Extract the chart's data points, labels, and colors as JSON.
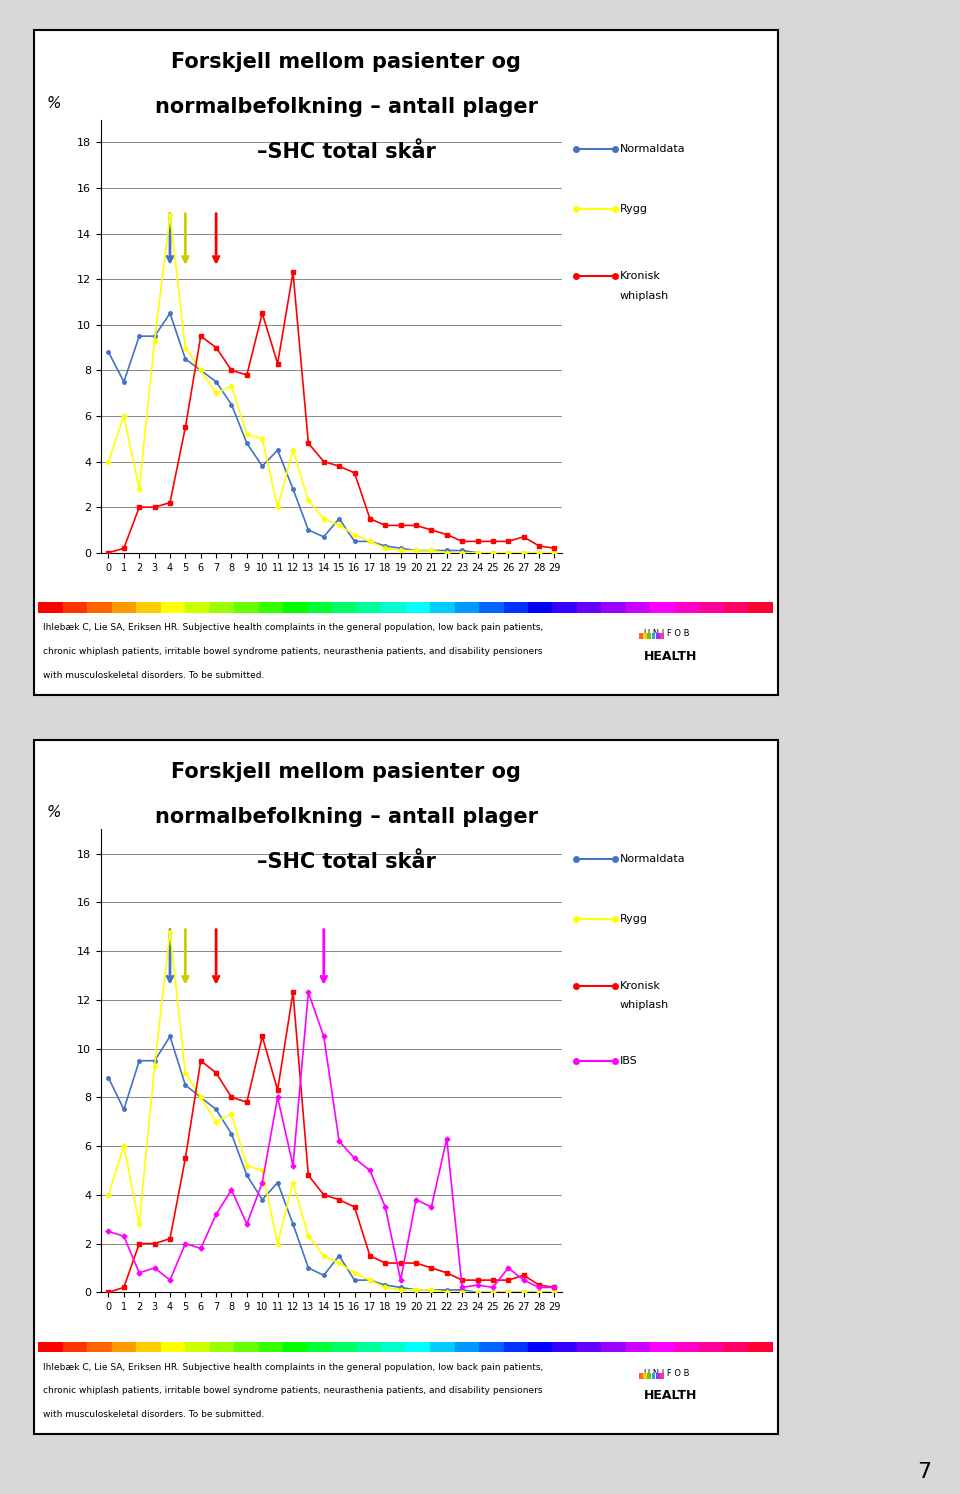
{
  "ylabel_ticks": [
    0,
    2,
    4,
    6,
    8,
    10,
    12,
    14,
    16,
    18
  ],
  "xticks": [
    0,
    1,
    2,
    3,
    4,
    5,
    6,
    7,
    8,
    9,
    10,
    11,
    12,
    13,
    14,
    15,
    16,
    17,
    18,
    19,
    20,
    21,
    22,
    23,
    24,
    25,
    26,
    27,
    28,
    29
  ],
  "normaldata": [
    8.8,
    7.5,
    9.5,
    9.5,
    10.5,
    8.5,
    8.0,
    7.5,
    6.5,
    4.8,
    3.8,
    4.5,
    2.8,
    1.0,
    0.7,
    1.5,
    0.5,
    0.5,
    0.3,
    0.2,
    0.1,
    0.1,
    0.1,
    0.1,
    0.0,
    0.0,
    0.0,
    0.0,
    0.0,
    0.0
  ],
  "rygg": [
    4.0,
    6.0,
    2.8,
    9.3,
    14.8,
    9.0,
    8.0,
    7.0,
    7.3,
    5.2,
    5.0,
    2.0,
    4.5,
    2.3,
    1.5,
    1.2,
    0.8,
    0.5,
    0.2,
    0.1,
    0.1,
    0.1,
    0.0,
    0.0,
    0.0,
    0.0,
    0.0,
    0.0,
    0.0,
    0.0
  ],
  "kronisk_whiplash": [
    0.0,
    0.2,
    2.0,
    2.0,
    2.2,
    5.5,
    9.5,
    9.0,
    8.0,
    7.8,
    10.5,
    8.3,
    12.3,
    4.8,
    4.0,
    3.8,
    3.5,
    1.5,
    1.2,
    1.2,
    1.2,
    1.0,
    0.8,
    0.5,
    0.5,
    0.5,
    0.5,
    0.7,
    0.3,
    0.2
  ],
  "ibs": [
    2.5,
    2.3,
    0.8,
    1.0,
    0.5,
    2.0,
    1.8,
    3.2,
    4.2,
    2.8,
    4.5,
    8.0,
    5.2,
    12.3,
    10.5,
    6.2,
    5.5,
    5.0,
    3.5,
    0.5,
    3.8,
    3.5,
    6.3,
    0.2,
    0.3,
    0.2,
    1.0,
    0.5,
    0.2,
    0.2
  ],
  "normaldata_color": "#4472C4",
  "rygg_color": "#FFFF00",
  "kronisk_color": "#FF0000",
  "ibs_color": "#FF00FF",
  "panel_bg": "#FFFFFF",
  "fig_bg": "#D8D8D8",
  "grid_color": "#888888",
  "footnote1": "Ihlebæk C, Lie SA, Eriksen HR. Subjective health complaints in the general population, low back pain patients,",
  "footnote2": "chronic whiplash patients, irritable bowel syndrome patients, neurasthenia patients, and disability pensioners",
  "footnote3": "with musculoskeletal disorders. To be submitted.",
  "stripe_colors": [
    "#FF0000",
    "#FF3300",
    "#FF6600",
    "#FF9900",
    "#FFCC00",
    "#FFFF00",
    "#CCFF00",
    "#99FF00",
    "#66FF00",
    "#33FF00",
    "#00FF00",
    "#00FF33",
    "#00FF66",
    "#00FF99",
    "#00FFCC",
    "#00FFFF",
    "#00CCFF",
    "#0099FF",
    "#0066FF",
    "#0033FF",
    "#0000FF",
    "#3300FF",
    "#6600FF",
    "#9900FF",
    "#CC00FF",
    "#FF00FF",
    "#FF00CC",
    "#FF0099",
    "#FF0066",
    "#FF0033"
  ]
}
